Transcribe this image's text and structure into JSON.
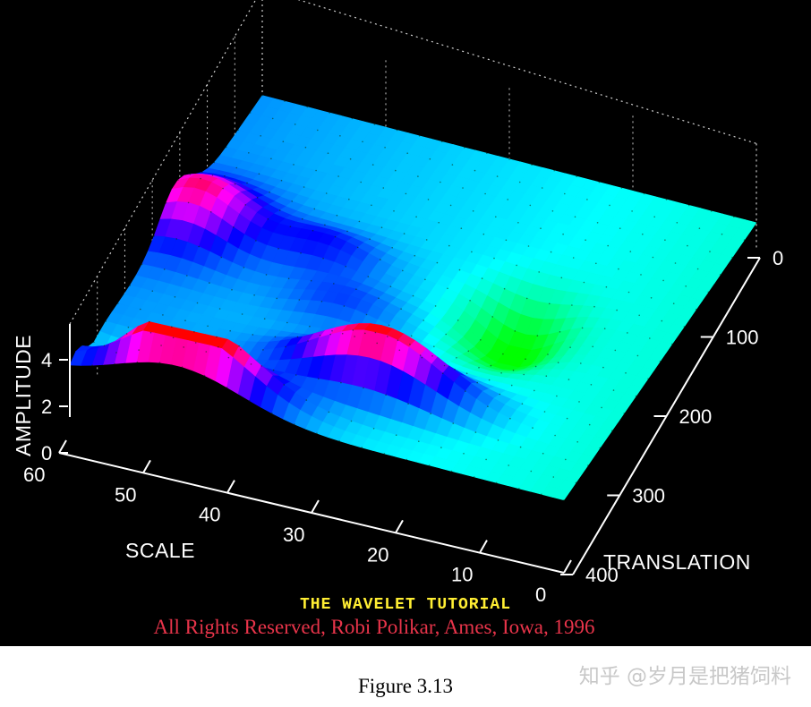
{
  "chart_data": {
    "type": "surface",
    "title": "THE WAVELET TUTORIAL",
    "xlabel": "TRANSLATION",
    "ylabel": "SCALE",
    "zlabel": "AMPLITUDE",
    "x_ticks": [
      "0",
      "100",
      "200",
      "300",
      "400"
    ],
    "y_ticks": [
      "60",
      "50",
      "40",
      "30",
      "20",
      "10",
      "0"
    ],
    "z_ticks": [
      "0",
      "2",
      "4"
    ],
    "xlim": [
      0,
      400
    ],
    "ylim": [
      0,
      60
    ],
    "zlim": [
      0,
      4
    ],
    "colormap": "hsv",
    "grid": true
  },
  "copyright": "All Rights Reserved, Robi Polikar, Ames, Iowa, 1996",
  "caption": "Figure 3.13",
  "watermark": "知乎 @岁月是把猪饲料",
  "colors": {
    "background": "#000000",
    "title": "#ffee33",
    "copyright": "#e8344a"
  }
}
